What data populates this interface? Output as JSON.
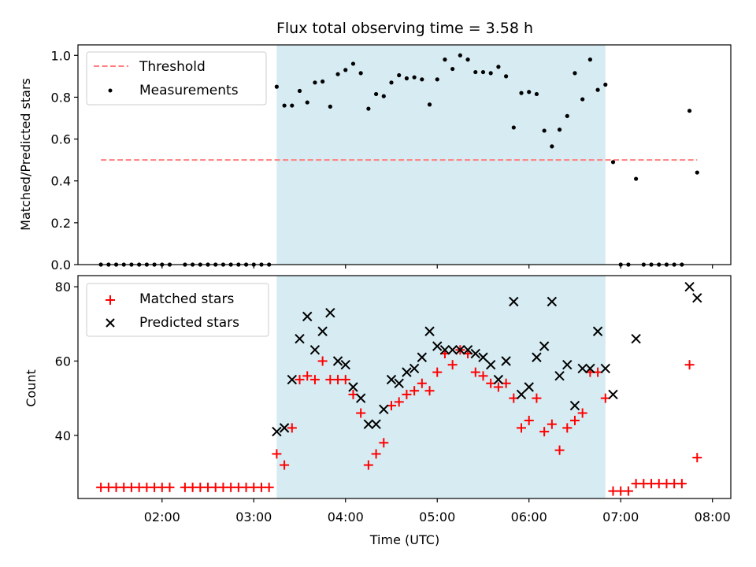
{
  "chart_data": [
    {
      "type": "scatter",
      "title": "Flux total observing time = 3.58 h",
      "xlabel": "",
      "ylabel": "Matched/Predicted stars",
      "xlim": [
        "01:05",
        "08:12"
      ],
      "ylim": [
        0,
        1.05
      ],
      "yticks": [
        0.0,
        0.2,
        0.4,
        0.6,
        0.8,
        1.0
      ],
      "ytick_labels": [
        "0.0",
        "0.2",
        "0.4",
        "0.6",
        "0.8",
        "1.0"
      ],
      "grid": false,
      "legend_position": "top-left",
      "observing_window": {
        "start": "03:15",
        "end": "06:50",
        "color": "#add8e6"
      },
      "series": [
        {
          "name": "Threshold",
          "style": "dashed-line",
          "color": "#ff7f7f",
          "x": [
            "01:20",
            "07:50"
          ],
          "y": [
            0.5,
            0.5
          ]
        },
        {
          "name": "Measurements",
          "style": "dots",
          "color": "#000000",
          "x": [
            "01:20",
            "01:25",
            "01:30",
            "01:35",
            "01:40",
            "01:45",
            "01:50",
            "01:55",
            "02:00",
            "02:05",
            "02:15",
            "02:20",
            "02:25",
            "02:30",
            "02:35",
            "02:40",
            "02:45",
            "02:50",
            "02:55",
            "03:00",
            "03:05",
            "03:10",
            "03:15",
            "03:20",
            "03:25",
            "03:30",
            "03:35",
            "03:40",
            "03:45",
            "03:50",
            "03:55",
            "04:00",
            "04:05",
            "04:10",
            "04:15",
            "04:20",
            "04:25",
            "04:30",
            "04:35",
            "04:40",
            "04:45",
            "04:50",
            "04:55",
            "05:00",
            "05:05",
            "05:10",
            "05:15",
            "05:20",
            "05:25",
            "05:30",
            "05:35",
            "05:40",
            "05:45",
            "05:50",
            "05:55",
            "06:00",
            "06:05",
            "06:10",
            "06:15",
            "06:20",
            "06:25",
            "06:30",
            "06:35",
            "06:40",
            "06:45",
            "06:50",
            "06:55",
            "07:00",
            "07:05",
            "07:10",
            "07:15",
            "07:20",
            "07:25",
            "07:30",
            "07:35",
            "07:40",
            "07:45",
            "07:50"
          ],
          "y": [
            0,
            0,
            0,
            0,
            0,
            0,
            0,
            0,
            0,
            0,
            0,
            0,
            0,
            0,
            0,
            0,
            0,
            0,
            0,
            0,
            0,
            0,
            0.85,
            0.76,
            0.76,
            0.83,
            0.775,
            0.87,
            0.875,
            0.755,
            0.91,
            0.93,
            0.96,
            0.915,
            0.745,
            0.815,
            0.805,
            0.87,
            0.905,
            0.89,
            0.895,
            0.885,
            0.765,
            0.885,
            0.98,
            0.935,
            1.0,
            0.98,
            0.92,
            0.92,
            0.915,
            0.945,
            0.9,
            0.655,
            0.82,
            0.825,
            0.815,
            0.64,
            0.565,
            0.645,
            0.71,
            0.915,
            0.79,
            0.98,
            0.835,
            0.86,
            0.49,
            0,
            0,
            0.41,
            0,
            0,
            0,
            0,
            0,
            0,
            0.735,
            0.44
          ]
        }
      ]
    },
    {
      "type": "scatter",
      "title": "",
      "xlabel": "Time (UTC)",
      "ylabel": "Count",
      "xlim": [
        "01:05",
        "08:12"
      ],
      "xticks": [
        "02:00",
        "03:00",
        "04:00",
        "05:00",
        "06:00",
        "07:00",
        "08:00"
      ],
      "ylim": [
        23,
        83
      ],
      "yticks": [
        40,
        60,
        80
      ],
      "ytick_labels": [
        "40",
        "60",
        "80"
      ],
      "grid": false,
      "legend_position": "top-left",
      "observing_window": {
        "start": "03:15",
        "end": "06:50",
        "color": "#add8e6"
      },
      "series": [
        {
          "name": "Matched stars",
          "style": "plus",
          "color": "#ff0000",
          "x": [
            "01:20",
            "01:25",
            "01:30",
            "01:35",
            "01:40",
            "01:45",
            "01:50",
            "01:55",
            "02:00",
            "02:05",
            "02:15",
            "02:20",
            "02:25",
            "02:30",
            "02:35",
            "02:40",
            "02:45",
            "02:50",
            "02:55",
            "03:00",
            "03:05",
            "03:10",
            "03:15",
            "03:20",
            "03:25",
            "03:30",
            "03:35",
            "03:40",
            "03:45",
            "03:50",
            "03:55",
            "04:00",
            "04:05",
            "04:10",
            "04:15",
            "04:20",
            "04:25",
            "04:30",
            "04:35",
            "04:40",
            "04:45",
            "04:50",
            "04:55",
            "05:00",
            "05:05",
            "05:10",
            "05:15",
            "05:20",
            "05:25",
            "05:30",
            "05:35",
            "05:40",
            "05:45",
            "05:50",
            "05:55",
            "06:00",
            "06:05",
            "06:10",
            "06:15",
            "06:20",
            "06:25",
            "06:30",
            "06:35",
            "06:40",
            "06:45",
            "06:50",
            "06:55",
            "07:00",
            "07:05",
            "07:10",
            "07:15",
            "07:20",
            "07:25",
            "07:30",
            "07:35",
            "07:40",
            "07:45",
            "07:50"
          ],
          "y": [
            26,
            26,
            26,
            26,
            26,
            26,
            26,
            26,
            26,
            26,
            26,
            26,
            26,
            26,
            26,
            26,
            26,
            26,
            26,
            26,
            26,
            26,
            35,
            32,
            42,
            55,
            56,
            55,
            60,
            55,
            55,
            55,
            51,
            46,
            32,
            35,
            38,
            48,
            49,
            51,
            52,
            54,
            52,
            57,
            62,
            59,
            63,
            62,
            57,
            56,
            54,
            53,
            54,
            50,
            42,
            44,
            50,
            41,
            43,
            36,
            42,
            44,
            46,
            57,
            57,
            50,
            25,
            25,
            25,
            27,
            27,
            27,
            27,
            27,
            27,
            27,
            59,
            34
          ]
        },
        {
          "name": "Predicted stars",
          "style": "x",
          "color": "#000000",
          "x": [
            "03:15",
            "03:20",
            "03:25",
            "03:30",
            "03:35",
            "03:40",
            "03:45",
            "03:50",
            "03:55",
            "04:00",
            "04:05",
            "04:10",
            "04:15",
            "04:20",
            "04:25",
            "04:30",
            "04:35",
            "04:40",
            "04:45",
            "04:50",
            "04:55",
            "05:00",
            "05:05",
            "05:10",
            "05:15",
            "05:20",
            "05:25",
            "05:30",
            "05:35",
            "05:40",
            "05:45",
            "05:50",
            "05:55",
            "06:00",
            "06:05",
            "06:10",
            "06:15",
            "06:20",
            "06:25",
            "06:30",
            "06:35",
            "06:40",
            "06:45",
            "06:50",
            "06:55",
            "07:10",
            "07:45",
            "07:50"
          ],
          "y": [
            41,
            42,
            55,
            66,
            72,
            63,
            68,
            73,
            60,
            59,
            53,
            50,
            43,
            43,
            47,
            55,
            54,
            57,
            58,
            61,
            68,
            64,
            63,
            63,
            63,
            63,
            62,
            61,
            59,
            55,
            60,
            76,
            51,
            53,
            61,
            64,
            76,
            56,
            59,
            48,
            58,
            58,
            68,
            58,
            51,
            66,
            80,
            77
          ]
        }
      ]
    }
  ]
}
